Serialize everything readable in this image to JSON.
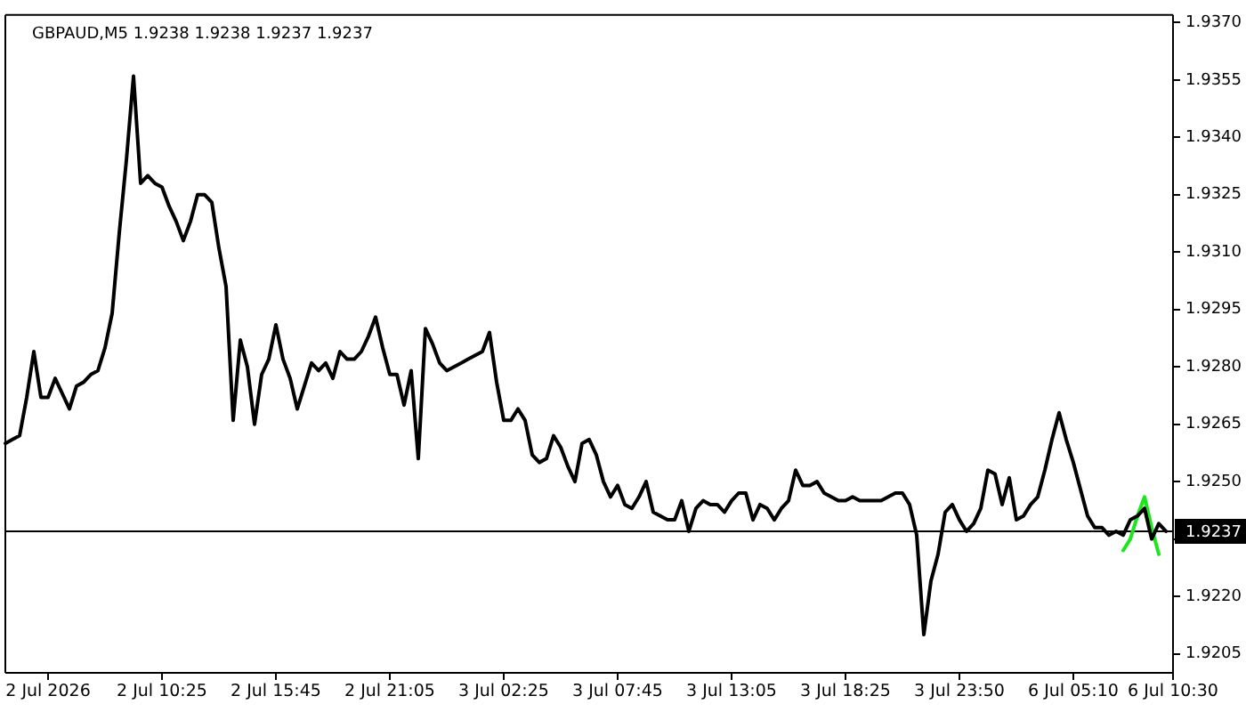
{
  "chart_data": {
    "type": "line",
    "title": "GBPAUD,M5 1.9238 1.9238 1.9237 1.9237",
    "categories": [
      null,
      null,
      null,
      null,
      null,
      null,
      "2 Jul 2026",
      null,
      null,
      null,
      null,
      null,
      null,
      null,
      null,
      null,
      null,
      null,
      null,
      null,
      null,
      null,
      "2 Jul 10:25",
      null,
      null,
      null,
      null,
      null,
      null,
      null,
      null,
      null,
      null,
      null,
      null,
      null,
      null,
      null,
      "2 Jul 15:45",
      null,
      null,
      null,
      null,
      null,
      null,
      null,
      null,
      null,
      null,
      null,
      null,
      null,
      null,
      null,
      "2 Jul 21:05",
      null,
      null,
      null,
      null,
      null,
      null,
      null,
      null,
      null,
      null,
      null,
      null,
      null,
      null,
      null,
      "3 Jul 02:25",
      null,
      null,
      null,
      null,
      null,
      null,
      null,
      null,
      null,
      null,
      null,
      null,
      null,
      null,
      null,
      "3 Jul 07:45",
      null,
      null,
      null,
      null,
      null,
      null,
      null,
      null,
      null,
      null,
      null,
      null,
      null,
      null,
      null,
      "3 Jul 13:05",
      null,
      null,
      null,
      null,
      null,
      null,
      null,
      null,
      null,
      null,
      null,
      null,
      null,
      null,
      null,
      "3 Jul 18:25",
      null,
      null,
      null,
      null,
      null,
      null,
      null,
      null,
      null,
      null,
      null,
      null,
      null,
      null,
      null,
      "3 Jul 23:50",
      null,
      null,
      null,
      null,
      null,
      null,
      null,
      null,
      null,
      null,
      null,
      null,
      null,
      null,
      null,
      "6 Jul 05:10",
      null,
      null,
      null,
      null,
      null,
      null,
      null,
      null,
      null,
      null,
      null,
      null,
      null,
      "6 Jul 10:30"
    ],
    "series": [
      {
        "color": "#000000",
        "values": [
          1.926,
          1.9261,
          1.9262,
          1.9272,
          1.9284,
          1.9272,
          1.9272,
          1.9277,
          1.9273,
          1.9269,
          1.9275,
          1.9276,
          1.9278,
          1.9279,
          1.9285,
          1.9294,
          1.9315,
          1.9334,
          1.9356,
          1.9328,
          1.933,
          1.9328,
          1.9327,
          1.9322,
          1.9318,
          1.9313,
          1.9318,
          1.9325,
          1.9325,
          1.9323,
          1.9311,
          1.9301,
          1.9266,
          1.9287,
          1.928,
          1.9265,
          1.9278,
          1.9282,
          1.9291,
          1.9282,
          1.9277,
          1.9269,
          1.9275,
          1.9281,
          1.9279,
          1.9281,
          1.9277,
          1.9284,
          1.9282,
          1.9282,
          1.9284,
          1.9288,
          1.9293,
          1.9285,
          1.9278,
          1.9278,
          1.927,
          1.9279,
          1.9256,
          1.929,
          1.9286,
          1.9281,
          1.9279,
          1.928,
          1.9281,
          1.9282,
          1.9283,
          1.9284,
          1.9289,
          1.9276,
          1.9266,
          1.9266,
          1.9269,
          1.9266,
          1.9257,
          1.9255,
          1.9256,
          1.9262,
          1.9259,
          1.9254,
          1.925,
          1.926,
          1.9261,
          1.9257,
          1.925,
          1.9246,
          1.9249,
          1.9244,
          1.9243,
          1.9246,
          1.925,
          1.9242,
          1.9241,
          1.924,
          1.924,
          1.9245,
          1.9237,
          1.9243,
          1.9245,
          1.9244,
          1.9244,
          1.9242,
          1.9245,
          1.9247,
          1.9247,
          1.924,
          1.9244,
          1.9243,
          1.924,
          1.9243,
          1.9245,
          1.9253,
          1.9249,
          1.9249,
          1.925,
          1.9247,
          1.9246,
          1.9245,
          1.9245,
          1.9246,
          1.9245,
          1.9245,
          1.9245,
          1.9245,
          1.9246,
          1.9247,
          1.9247,
          1.9244,
          1.9236,
          1.921,
          1.9224,
          1.9231,
          1.9242,
          1.9244,
          1.924,
          1.9237,
          1.9239,
          1.9243,
          1.9253,
          1.9252,
          1.9244,
          1.9251,
          1.924,
          1.9241,
          1.9244,
          1.9246,
          1.9253,
          1.9261,
          1.9268,
          1.9261,
          1.9255,
          1.9248,
          1.9241,
          1.9238,
          1.9238,
          1.9236,
          1.9237,
          1.9236,
          1.924,
          1.9241,
          1.9243,
          1.9235,
          1.9239,
          1.9237,
          null
        ]
      },
      {
        "color": "#1ee61e",
        "values": [
          null,
          null,
          null,
          null,
          null,
          null,
          null,
          null,
          null,
          null,
          null,
          null,
          null,
          null,
          null,
          null,
          null,
          null,
          null,
          null,
          null,
          null,
          null,
          null,
          null,
          null,
          null,
          null,
          null,
          null,
          null,
          null,
          null,
          null,
          null,
          null,
          null,
          null,
          null,
          null,
          null,
          null,
          null,
          null,
          null,
          null,
          null,
          null,
          null,
          null,
          null,
          null,
          null,
          null,
          null,
          null,
          null,
          null,
          null,
          null,
          null,
          null,
          null,
          null,
          null,
          null,
          null,
          null,
          null,
          null,
          null,
          null,
          null,
          null,
          null,
          null,
          null,
          null,
          null,
          null,
          null,
          null,
          null,
          null,
          null,
          null,
          null,
          null,
          null,
          null,
          null,
          null,
          null,
          null,
          null,
          null,
          null,
          null,
          null,
          null,
          null,
          null,
          null,
          null,
          null,
          null,
          null,
          null,
          null,
          null,
          null,
          null,
          null,
          null,
          null,
          null,
          null,
          null,
          null,
          null,
          null,
          null,
          null,
          null,
          null,
          null,
          null,
          null,
          null,
          null,
          null,
          null,
          null,
          null,
          null,
          null,
          null,
          null,
          null,
          null,
          null,
          null,
          null,
          null,
          null,
          null,
          null,
          null,
          null,
          null,
          null,
          null,
          null,
          null,
          null,
          null,
          null,
          1.9232,
          1.9235,
          1.9241,
          1.9246,
          1.9238,
          1.9231,
          null,
          null
        ]
      }
    ],
    "ylim": [
      1.92,
      1.9372
    ],
    "yticks": [
      1.9205,
      {
        "value": 1.922,
        "label": "1.9220"
      },
      {
        "value": 1.9235,
        "label": null
      },
      {
        "value": 1.925,
        "label": "1.9250"
      },
      1.9265,
      {
        "value": 1.928,
        "label": "1.9280"
      },
      1.9295,
      {
        "value": 1.931,
        "label": "1.9310"
      },
      1.9325,
      {
        "value": 1.934,
        "label": "1.9340"
      },
      1.9355,
      {
        "value": 1.937,
        "label": "1.9370"
      }
    ],
    "ref_lines": [
      {
        "axis": "y",
        "value": 1.9237,
        "label": "1.9237",
        "color": "#000000"
      }
    ],
    "marker": "none"
  }
}
